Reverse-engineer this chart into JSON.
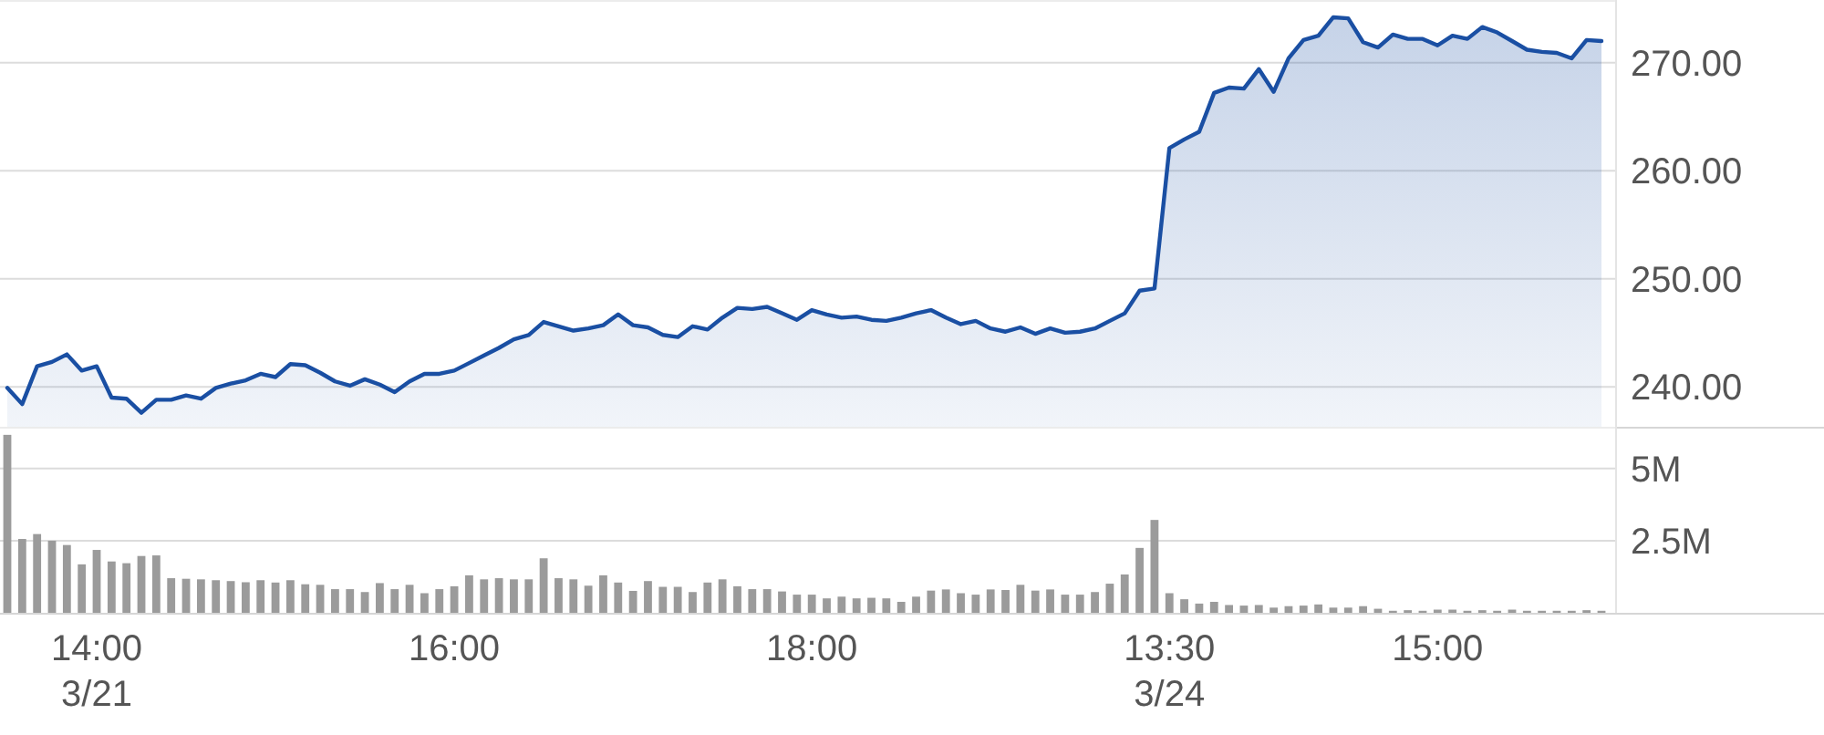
{
  "chart_data": [
    {
      "type": "area",
      "tick_labels": "y",
      "grid": "y",
      "categories": [
        null,
        null,
        null,
        null,
        null,
        null,
        null,
        null,
        null,
        null,
        null,
        null,
        null,
        null,
        null,
        null,
        null,
        null,
        null,
        null,
        null,
        null,
        null,
        null,
        null,
        null,
        null,
        null,
        null,
        null,
        null,
        null,
        null,
        null,
        null,
        null,
        null,
        null,
        null,
        null,
        null,
        null,
        null,
        null,
        null,
        null,
        null,
        null,
        null,
        null,
        null,
        null,
        null,
        null,
        null,
        null,
        null,
        null,
        null,
        null,
        null,
        null,
        null,
        null,
        null,
        null,
        null,
        null,
        null,
        null,
        null,
        null,
        null,
        null,
        null,
        null,
        null,
        null,
        null,
        null,
        null,
        null,
        null,
        null,
        null,
        null,
        null,
        null,
        null,
        null,
        null,
        null,
        null,
        null,
        null,
        null,
        null,
        null,
        null,
        null,
        null,
        null,
        null,
        null,
        null,
        null,
        null,
        null
      ],
      "series": [
        {
          "color": "#1a4fa3",
          "values": [
            239.9,
            238.4,
            241.9,
            242.3,
            243.0,
            241.5,
            241.9,
            239.0,
            238.9,
            237.6,
            238.8,
            238.8,
            239.2,
            238.9,
            239.9,
            240.3,
            240.6,
            241.2,
            240.9,
            242.1,
            242.0,
            241.3,
            240.5,
            240.1,
            240.7,
            240.2,
            239.5,
            240.5,
            241.2,
            241.2,
            241.5,
            242.2,
            242.9,
            243.6,
            244.4,
            244.8,
            246.0,
            245.6,
            245.2,
            245.4,
            245.7,
            246.7,
            245.7,
            245.5,
            244.8,
            244.6,
            245.6,
            245.3,
            246.4,
            247.3,
            247.2,
            247.4,
            246.8,
            246.2,
            247.1,
            246.7,
            246.4,
            246.5,
            246.2,
            246.1,
            246.4,
            246.8,
            247.1,
            246.4,
            245.8,
            246.1,
            245.4,
            245.1,
            245.5,
            244.9,
            245.4,
            245.0,
            245.1,
            245.4,
            246.1,
            246.8,
            248.9,
            249.1,
            262.1,
            262.9,
            263.6,
            267.2,
            267.7,
            267.6,
            269.4,
            267.3,
            270.4,
            272.1,
            272.5,
            274.2,
            274.1,
            271.9,
            271.4,
            272.6,
            272.2,
            272.2,
            271.6,
            272.5,
            272.2,
            273.3,
            272.8,
            272.0,
            271.2,
            271.0,
            270.9,
            270.4,
            272.1,
            272.0
          ]
        }
      ],
      "ylim": [
        236.3,
        275.8
      ],
      "yticks": [
        {
          "value": 240,
          "label": "240.00"
        },
        {
          "value": 250,
          "label": "250.00"
        },
        {
          "value": 260,
          "label": "260.00"
        },
        {
          "value": 270,
          "label": "270.00"
        }
      ]
    },
    {
      "type": "bar",
      "grid": "y",
      "categories": [
        null,
        null,
        null,
        null,
        null,
        null,
        "14:00\n3/21",
        null,
        null,
        null,
        null,
        null,
        null,
        null,
        null,
        null,
        null,
        null,
        null,
        null,
        null,
        null,
        null,
        null,
        null,
        null,
        null,
        null,
        null,
        null,
        "16:00",
        null,
        null,
        null,
        null,
        null,
        null,
        null,
        null,
        null,
        null,
        null,
        null,
        null,
        null,
        null,
        null,
        null,
        null,
        null,
        null,
        null,
        null,
        null,
        "18:00",
        null,
        null,
        null,
        null,
        null,
        null,
        null,
        null,
        null,
        null,
        null,
        null,
        null,
        null,
        null,
        null,
        null,
        null,
        null,
        null,
        null,
        null,
        null,
        "13:30\n3/24",
        null,
        null,
        null,
        null,
        null,
        null,
        null,
        null,
        null,
        null,
        null,
        null,
        null,
        null,
        null,
        null,
        null,
        "15:00",
        null,
        null,
        null,
        null,
        null,
        null,
        null,
        null,
        null,
        null,
        null
      ],
      "series": [
        {
          "color": "#9b9b9b",
          "values": [
            6.17,
            2.56,
            2.73,
            2.5,
            2.35,
            1.68,
            2.18,
            1.78,
            1.72,
            1.97,
            1.99,
            1.2,
            1.18,
            1.16,
            1.13,
            1.1,
            1.06,
            1.13,
            1.05,
            1.13,
            0.99,
            0.97,
            0.82,
            0.82,
            0.72,
            1.03,
            0.82,
            0.97,
            0.68,
            0.82,
            0.92,
            1.3,
            1.16,
            1.2,
            1.16,
            1.16,
            1.89,
            1.2,
            1.16,
            0.94,
            1.3,
            1.05,
            0.76,
            1.1,
            0.9,
            0.9,
            0.72,
            1.05,
            1.16,
            0.92,
            0.82,
            0.82,
            0.74,
            0.63,
            0.63,
            0.5,
            0.56,
            0.5,
            0.52,
            0.5,
            0.38,
            0.56,
            0.77,
            0.81,
            0.68,
            0.63,
            0.81,
            0.79,
            0.97,
            0.77,
            0.81,
            0.63,
            0.63,
            0.72,
            1.01,
            1.33,
            2.25,
            3.22,
            0.68,
            0.47,
            0.32,
            0.38,
            0.27,
            0.25,
            0.27,
            0.18,
            0.23,
            0.25,
            0.29,
            0.18,
            0.18,
            0.23,
            0.14,
            0.07,
            0.09,
            0.07,
            0.11,
            0.11,
            0.07,
            0.09,
            0.07,
            0.11,
            0.07,
            0.07,
            0.07,
            0.07,
            0.09,
            0.07
          ]
        }
      ],
      "ylim": [
        0,
        6.45
      ],
      "yticks": [
        {
          "value": 2.5,
          "label": "2.5M"
        },
        {
          "value": 5,
          "label": "5M"
        }
      ]
    }
  ]
}
